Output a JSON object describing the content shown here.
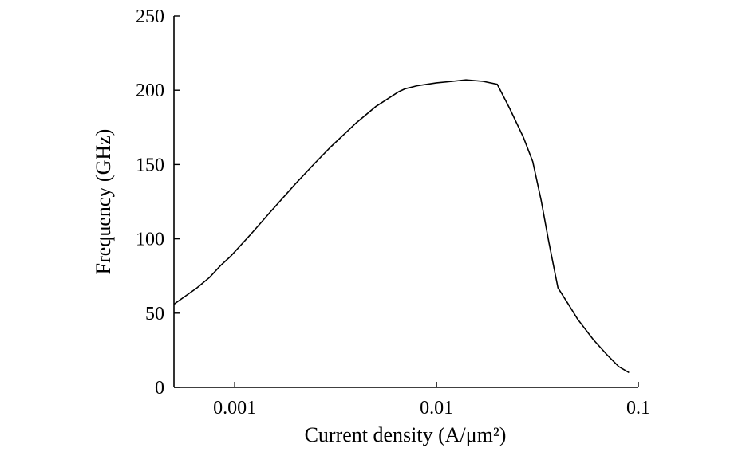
{
  "chart_data": {
    "type": "line",
    "xlabel": "Current density (A/μm²)",
    "ylabel": "Frequency (GHz)",
    "xscale": "log",
    "xlim": [
      0.0005,
      0.1
    ],
    "ylim": [
      0,
      250
    ],
    "grid": false,
    "x_ticks": [
      0.001,
      0.01,
      0.1
    ],
    "x_tick_labels": [
      "0.001",
      "0.01",
      "0.1"
    ],
    "y_ticks": [
      0,
      50,
      100,
      150,
      200,
      250
    ],
    "y_tick_labels": [
      "0",
      "50",
      "100",
      "150",
      "200",
      "250"
    ],
    "series": [
      {
        "x": [
          0.0005,
          0.00065,
          0.00075,
          0.00085,
          0.00095,
          0.0012,
          0.0015,
          0.002,
          0.0025,
          0.003,
          0.004,
          0.005,
          0.006,
          0.0065,
          0.007,
          0.008,
          0.009,
          0.01,
          0.012,
          0.014,
          0.017,
          0.02,
          0.023,
          0.027,
          0.03,
          0.033,
          0.036,
          0.04,
          0.045,
          0.05,
          0.06,
          0.07,
          0.08,
          0.09
        ],
        "y": [
          56,
          67,
          74,
          82,
          88,
          103,
          118,
          137,
          151,
          162,
          178,
          189,
          196,
          199,
          201,
          203,
          204,
          205,
          206,
          207,
          206,
          204,
          188,
          168,
          152,
          126,
          98,
          67,
          56,
          46,
          32,
          22,
          14,
          10
        ]
      }
    ]
  }
}
